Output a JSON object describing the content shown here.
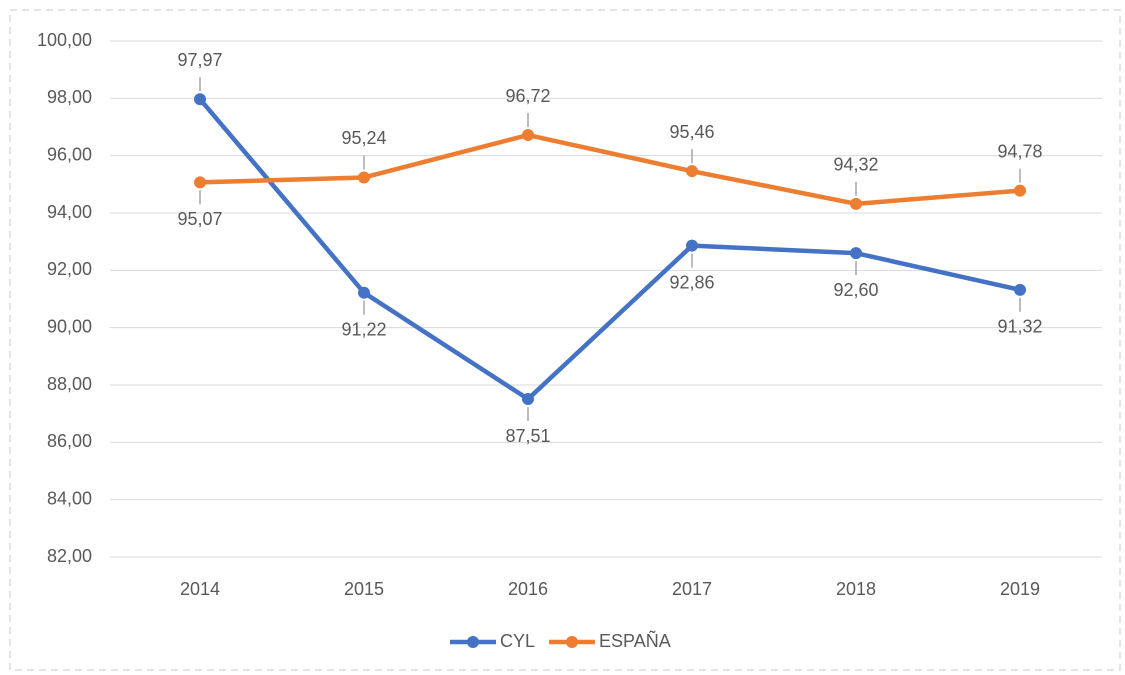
{
  "chart_data": {
    "type": "line",
    "categories": [
      "2014",
      "2015",
      "2016",
      "2017",
      "2018",
      "2019"
    ],
    "series": [
      {
        "name": "CYL",
        "color": "#4472c4",
        "values": [
          97.97,
          91.22,
          87.51,
          92.86,
          92.6,
          91.32
        ],
        "value_labels": [
          "97,97",
          "91,22",
          "87,51",
          "92,86",
          "92,60",
          "91,32"
        ]
      },
      {
        "name": "ESPAÑA",
        "color": "#ed7d31",
        "values": [
          95.07,
          95.24,
          96.72,
          95.46,
          94.32,
          94.78
        ],
        "value_labels": [
          "95,07",
          "95,24",
          "96,72",
          "95,46",
          "94,32",
          "94,78"
        ]
      }
    ],
    "ylim": [
      82,
      100
    ],
    "yticks": [
      {
        "value": 82,
        "label": "82,00"
      },
      {
        "value": 84,
        "label": "84,00"
      },
      {
        "value": 86,
        "label": "86,00"
      },
      {
        "value": 88,
        "label": "88,00"
      },
      {
        "value": 90,
        "label": "90,00"
      },
      {
        "value": 92,
        "label": "92,00"
      },
      {
        "value": 94,
        "label": "94,00"
      },
      {
        "value": 96,
        "label": "96,00"
      },
      {
        "value": 98,
        "label": "98,00"
      },
      {
        "value": 100,
        "label": "100,00"
      }
    ],
    "grid": true,
    "legend": "bottom"
  }
}
